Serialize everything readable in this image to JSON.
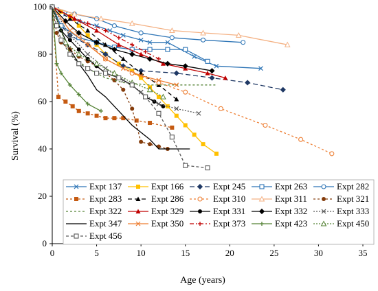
{
  "chart_data": {
    "type": "line",
    "title": "",
    "xlabel": "Age (years)",
    "ylabel": "Survival (%)",
    "xlim": [
      0,
      35
    ],
    "ylim": [
      0,
      100
    ],
    "xticks": [
      0,
      5,
      10,
      15,
      20,
      25,
      30,
      35
    ],
    "yticks": [
      0,
      20,
      40,
      60,
      80,
      100
    ],
    "grid": false,
    "legend_position": "bottom-right",
    "series": [
      {
        "name": "Expt 137",
        "color": "#2e75b6",
        "dash": "",
        "marker": "x",
        "x": [
          0,
          0.5,
          1.5,
          3,
          5,
          6.5,
          8,
          10,
          11,
          13,
          16,
          18.5,
          23.5
        ],
        "y": [
          100,
          99,
          97,
          94,
          92,
          90,
          88,
          86,
          85,
          85,
          79,
          75,
          74
        ]
      },
      {
        "name": "Expt 166",
        "color": "#ffc000",
        "dash": "",
        "marker": "square",
        "x": [
          0,
          1,
          2,
          3,
          4,
          5,
          6,
          7.5,
          9,
          10,
          11,
          12,
          13,
          14,
          15,
          16,
          17,
          18.5
        ],
        "y": [
          100,
          98,
          96,
          92,
          88,
          84,
          80,
          76,
          73,
          70,
          66,
          62,
          58,
          54,
          50,
          46,
          42,
          38
        ]
      },
      {
        "name": "Expt 245",
        "color": "#1f3864",
        "dash": "7,4",
        "marker": "diamond",
        "x": [
          0,
          1,
          2,
          4,
          6,
          8,
          10,
          14,
          18,
          22,
          26
        ],
        "y": [
          100,
          92,
          88,
          84,
          80,
          75,
          73,
          72,
          70,
          68,
          65
        ]
      },
      {
        "name": "Expt 263",
        "color": "#2e75b6",
        "dash": "",
        "marker": "square-open",
        "x": [
          0,
          1,
          3,
          5,
          7,
          9,
          11,
          13,
          15,
          17.5
        ],
        "y": [
          100,
          92,
          87,
          85,
          83,
          82,
          82,
          82,
          82,
          77
        ]
      },
      {
        "name": "Expt 282",
        "color": "#2e75b6",
        "dash": "",
        "marker": "circle-open",
        "x": [
          0,
          2.5,
          5,
          7,
          10,
          13.5,
          17,
          21.5
        ],
        "y": [
          100,
          97,
          95,
          92,
          89,
          87,
          86,
          85
        ]
      },
      {
        "name": "Expt 283",
        "color": "#c55a11",
        "dash": "3,3",
        "marker": "square",
        "x": [
          0,
          0.7,
          1.5,
          2.3,
          3,
          4,
          5,
          6,
          7,
          8,
          9.5,
          11,
          13.5
        ],
        "y": [
          100,
          62,
          60,
          58,
          56,
          55,
          54,
          53,
          53,
          53,
          52,
          51,
          49
        ]
      },
      {
        "name": "Expt 286",
        "color": "#000000",
        "dash": "6,4",
        "marker": "triangle",
        "x": [
          0,
          2,
          4,
          6,
          8,
          10,
          12,
          14
        ],
        "y": [
          100,
          95,
          90,
          84,
          78,
          72,
          67,
          61
        ]
      },
      {
        "name": "Expt 310",
        "color": "#ed7d31",
        "dash": "3,3",
        "marker": "circle-open",
        "x": [
          0,
          3,
          6,
          9,
          12,
          15,
          19,
          24,
          28,
          31.5
        ],
        "y": [
          100,
          88,
          78,
          72,
          68,
          64,
          57,
          50,
          44,
          38
        ]
      },
      {
        "name": "Expt 311",
        "color": "#f4b183",
        "dash": "",
        "marker": "triangle-open",
        "x": [
          0,
          2.5,
          5.5,
          9,
          13.5,
          17,
          21,
          26.5
        ],
        "y": [
          100,
          97,
          95,
          93,
          90,
          89,
          88,
          84
        ]
      },
      {
        "name": "Expt 321",
        "color": "#843c0c",
        "dash": "3,3",
        "marker": "circle",
        "x": [
          0,
          0.5,
          1,
          2,
          3,
          4,
          5,
          6,
          7,
          8,
          9,
          10,
          11,
          12,
          13
        ],
        "y": [
          100,
          89,
          85,
          82,
          79,
          77,
          75,
          72,
          69,
          65,
          57,
          43,
          42,
          41,
          40
        ]
      },
      {
        "name": "Expt 322",
        "color": "#548235",
        "dash": "3,3",
        "marker": "",
        "x": [
          0,
          2,
          4,
          6,
          8,
          11,
          14,
          18.5
        ],
        "y": [
          100,
          80,
          74,
          70,
          68,
          67,
          67,
          67
        ]
      },
      {
        "name": "Expt 329",
        "color": "#c00000",
        "dash": "",
        "marker": "triangle",
        "x": [
          0,
          2.5,
          5,
          7.5,
          10,
          12.5,
          15,
          17.5,
          19.5
        ],
        "y": [
          100,
          95,
          90,
          84,
          80,
          76,
          74,
          72,
          70
        ]
      },
      {
        "name": "Expt 331",
        "color": "#000000",
        "dash": "",
        "marker": "circle",
        "x": [
          0,
          1,
          2,
          3,
          4,
          5,
          6,
          7.5,
          9,
          10.5,
          11.5,
          12.5
        ],
        "y": [
          100,
          90,
          86,
          82,
          78,
          75,
          72,
          70,
          67,
          62,
          60,
          58
        ]
      },
      {
        "name": "Expt 332",
        "color": "#000000",
        "dash": "",
        "marker": "diamond",
        "x": [
          0,
          1.5,
          3,
          5,
          7,
          9,
          11,
          13,
          15,
          18
        ],
        "y": [
          100,
          94,
          89,
          85,
          82,
          80,
          78,
          76,
          75,
          73
        ]
      },
      {
        "name": "Expt 333",
        "color": "#595959",
        "dash": "2,2",
        "marker": "x",
        "x": [
          0,
          2,
          4,
          6,
          8,
          10,
          12,
          14,
          16.5
        ],
        "y": [
          100,
          88,
          80,
          74,
          69,
          64,
          59,
          57,
          55
        ]
      },
      {
        "name": "Expt 347",
        "color": "#000000",
        "dash": "",
        "marker": "",
        "x": [
          0,
          1,
          2,
          3,
          4,
          5,
          6,
          7,
          8,
          9,
          10,
          11,
          12,
          13,
          15.5
        ],
        "y": [
          100,
          90,
          82,
          76,
          71,
          65,
          62,
          58,
          54,
          50,
          47,
          44,
          40,
          40,
          40
        ]
      },
      {
        "name": "Expt 350",
        "color": "#ed7d31",
        "dash": "",
        "marker": "x",
        "x": [
          0,
          2,
          4,
          6,
          8,
          10,
          12,
          14
        ],
        "y": [
          100,
          90,
          84,
          78,
          74,
          71,
          69,
          67
        ]
      },
      {
        "name": "Expt 373",
        "color": "#c00000",
        "dash": "6,3,2,3",
        "marker": "plus",
        "x": [
          0,
          2,
          4,
          6,
          7.5,
          9,
          10.5,
          12
        ],
        "y": [
          100,
          96,
          93,
          90,
          87,
          84,
          81,
          78
        ]
      },
      {
        "name": "Expt 423",
        "color": "#548235",
        "dash": "",
        "marker": "plus",
        "x": [
          0,
          0.5,
          1,
          2,
          3,
          4,
          5.5
        ],
        "y": [
          100,
          76,
          72,
          67,
          63,
          59,
          56
        ]
      },
      {
        "name": "Expt 450",
        "color": "#548235",
        "dash": "2,2",
        "marker": "triangle-open",
        "x": [
          0,
          1.5,
          3,
          5,
          7,
          9,
          11,
          12.5
        ],
        "y": [
          100,
          85,
          80,
          76,
          72,
          68,
          65,
          62
        ]
      },
      {
        "name": "Expt 456",
        "color": "#595959",
        "dash": "4,3",
        "marker": "square-open",
        "x": [
          0,
          0.5,
          1,
          2,
          3,
          4,
          5,
          6,
          7.5,
          9,
          10.5,
          12,
          13.5,
          15,
          17.5
        ],
        "y": [
          100,
          92,
          86,
          80,
          76,
          74,
          72,
          72,
          70,
          67,
          62,
          55,
          45,
          33,
          32
        ]
      }
    ]
  }
}
